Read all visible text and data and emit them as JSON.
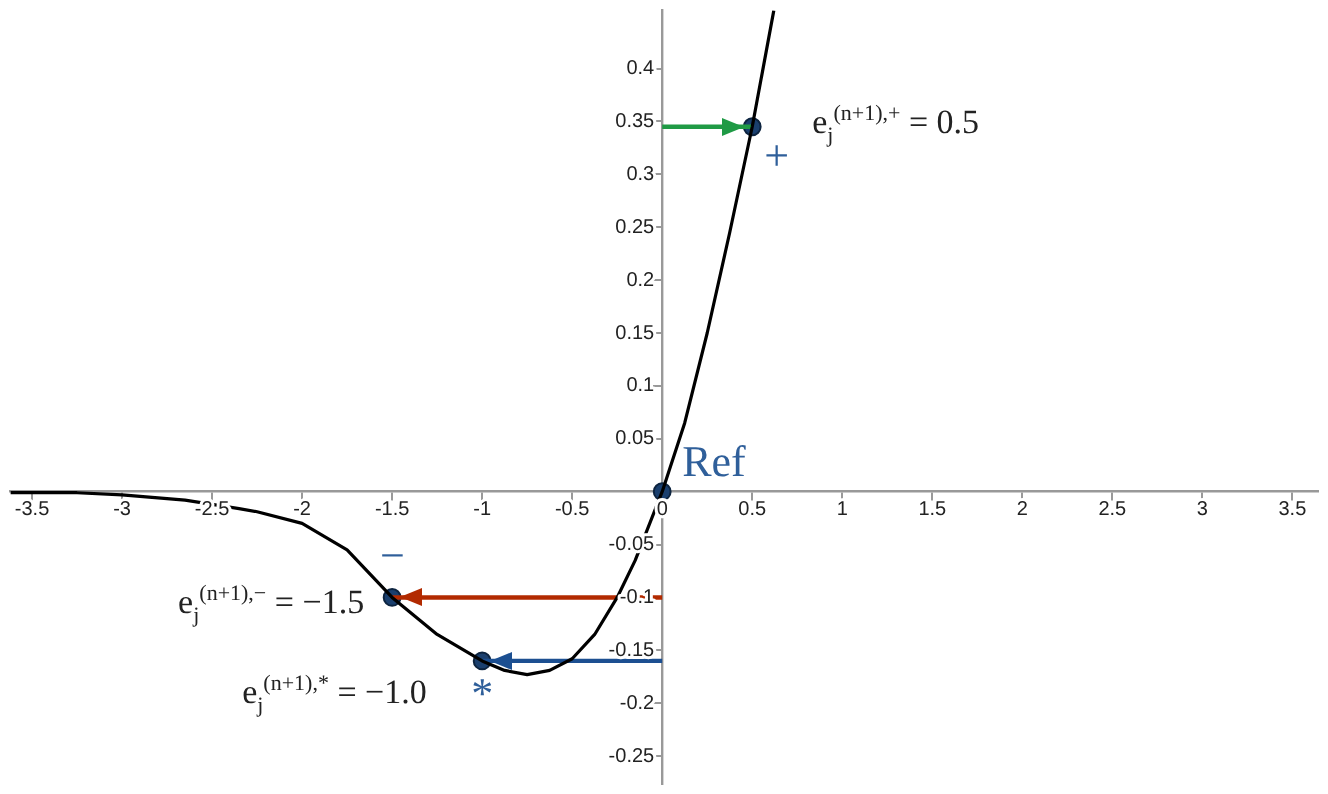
{
  "chart_data": {
    "type": "line",
    "xlim": [
      -3.62,
      3.64
    ],
    "ylim": [
      -0.276,
      0.455
    ],
    "xticks": [
      -3.5,
      -3,
      -2.5,
      -2,
      -1.5,
      -1,
      -0.5,
      0,
      0.5,
      1,
      1.5,
      2,
      2.5,
      3,
      3.5
    ],
    "yticks": [
      -0.25,
      -0.2,
      -0.15,
      -0.1,
      -0.05,
      {
        "value": 0,
        "label": null
      },
      0.05,
      0.1,
      0.15,
      0.2,
      0.25,
      0.3,
      0.35,
      0.4
    ],
    "grid": false,
    "legend": false,
    "series": [
      {
        "color": "#000000",
        "marker": "none",
        "x": [
          -3.62,
          -3.25,
          -3,
          -2.65,
          -2.35,
          -2.25,
          -2,
          -1.75,
          -1.5,
          -1.25,
          -1,
          -0.875,
          -0.75,
          -0.625,
          -0.5,
          -0.375,
          -0.25,
          -0.15,
          0,
          0.125,
          0.25,
          0.375,
          0.5,
          0.62
        ],
        "values": [
          -0.001,
          -0.001,
          -0.003,
          -0.008,
          -0.016,
          -0.019,
          -0.03,
          -0.055,
          -0.1,
          -0.135,
          -0.16,
          -0.169,
          -0.173,
          -0.169,
          -0.158,
          -0.135,
          -0.1,
          -0.065,
          0,
          0.065,
          0.15,
          0.245,
          0.345,
          0.455
        ]
      },
      {
        "color": "#1f9a45",
        "marker": "none",
        "x": [
          0,
          0.5
        ],
        "values": [
          0.345,
          0.345
        ]
      },
      {
        "color": "#b22a00",
        "marker": "none",
        "x": [
          0,
          -1.5
        ],
        "values": [
          -0.1,
          -0.1
        ]
      },
      {
        "color": "#1c4f91",
        "marker": "none",
        "x": [
          0,
          -1
        ],
        "values": [
          -0.16,
          -0.16
        ]
      },
      {
        "type": "scatter",
        "color": "#1a3f6e",
        "marker": "circle",
        "x": [
          0,
          0.5,
          -1.5,
          -1
        ],
        "values": [
          0,
          0.345,
          -0.1,
          -0.16
        ]
      }
    ],
    "annotations": [
      {
        "text": "Ref",
        "x": 0,
        "y": 0
      },
      {
        "text": "+",
        "x": 0.5,
        "y": 0.345
      },
      {
        "text": "e$_{j}$$^{(n+1),+}$ = 0.5",
        "x": 0.5,
        "y": 0.345
      },
      {
        "text": "−",
        "x": -1.5,
        "y": -0.1
      },
      {
        "text": "e$_{j}$$^{(n+1),−}$ = −1.5",
        "x": -1.5,
        "y": -0.1
      },
      {
        "text": "*",
        "x": -1,
        "y": -0.16
      },
      {
        "text": "e$_{j}$$^{(n+1),*}$ = −1.0",
        "x": -1,
        "y": -0.16
      }
    ]
  }
}
